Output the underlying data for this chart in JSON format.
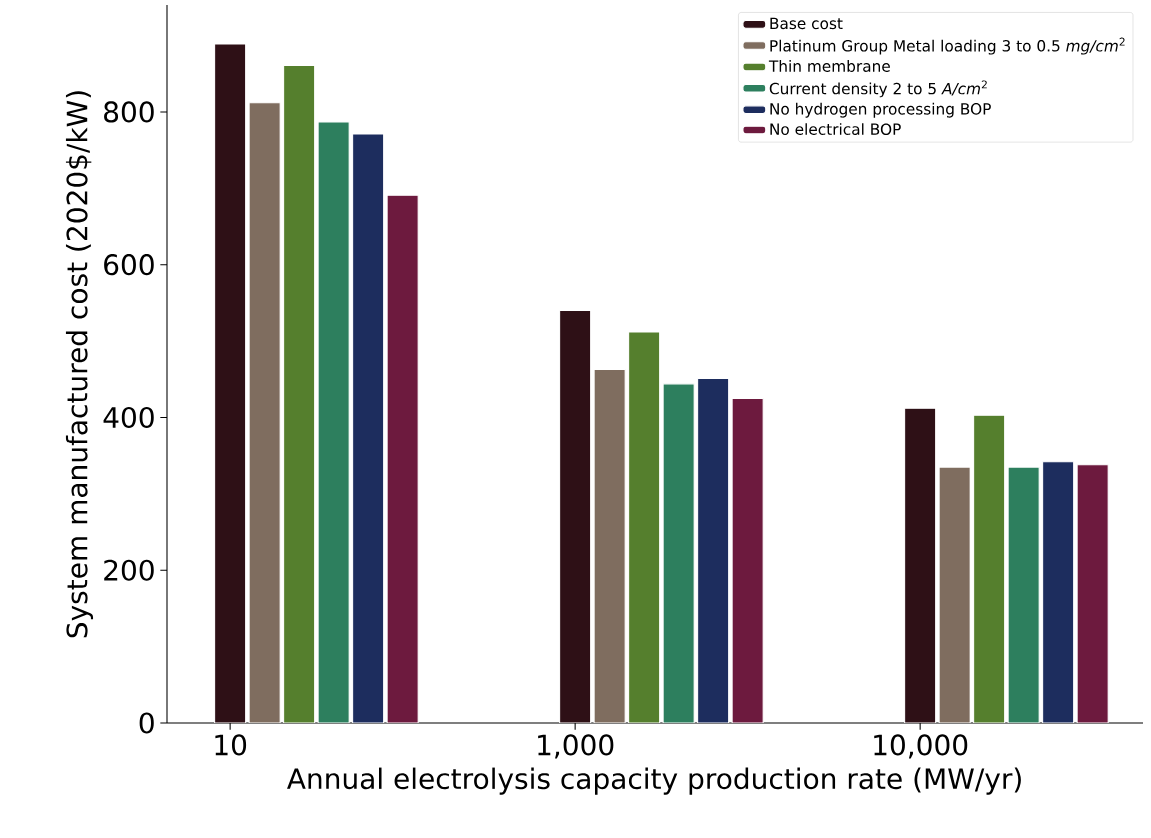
{
  "chart_data": {
    "type": "bar",
    "xlabel": "Annual electrolysis capacity production rate (MW/yr)",
    "ylabel": "System manufactured cost (2020$/kW)",
    "categories": [
      "10",
      "1,000",
      "10,000"
    ],
    "series": [
      {
        "name": "Base cost",
        "color": "#2e1016",
        "values": [
          889,
          540,
          412
        ]
      },
      {
        "name": "Platinum Group Metal loading 3 to 0.5 *mg/cm*$^{2}$",
        "color": "#7f6d5f",
        "values": [
          812,
          463,
          335
        ]
      },
      {
        "name": "Thin membrane",
        "color": "#557f2d",
        "values": [
          861,
          512,
          403
        ]
      },
      {
        "name": "Current density 2 to 5 *A/cm*$^{2}$",
        "color": "#2d7f5e",
        "values": [
          787,
          444,
          335
        ]
      },
      {
        "name": "No hydrogen processing BOP",
        "color": "#1d2d5e",
        "values": [
          771,
          451,
          342
        ]
      },
      {
        "name": "No electrical BOP",
        "color": "#6d1a3e",
        "values": [
          691,
          425,
          338
        ]
      }
    ],
    "ylim": [
      0,
      940
    ],
    "yticks": [
      0,
      200,
      400,
      600,
      800
    ],
    "legend": "top right"
  }
}
